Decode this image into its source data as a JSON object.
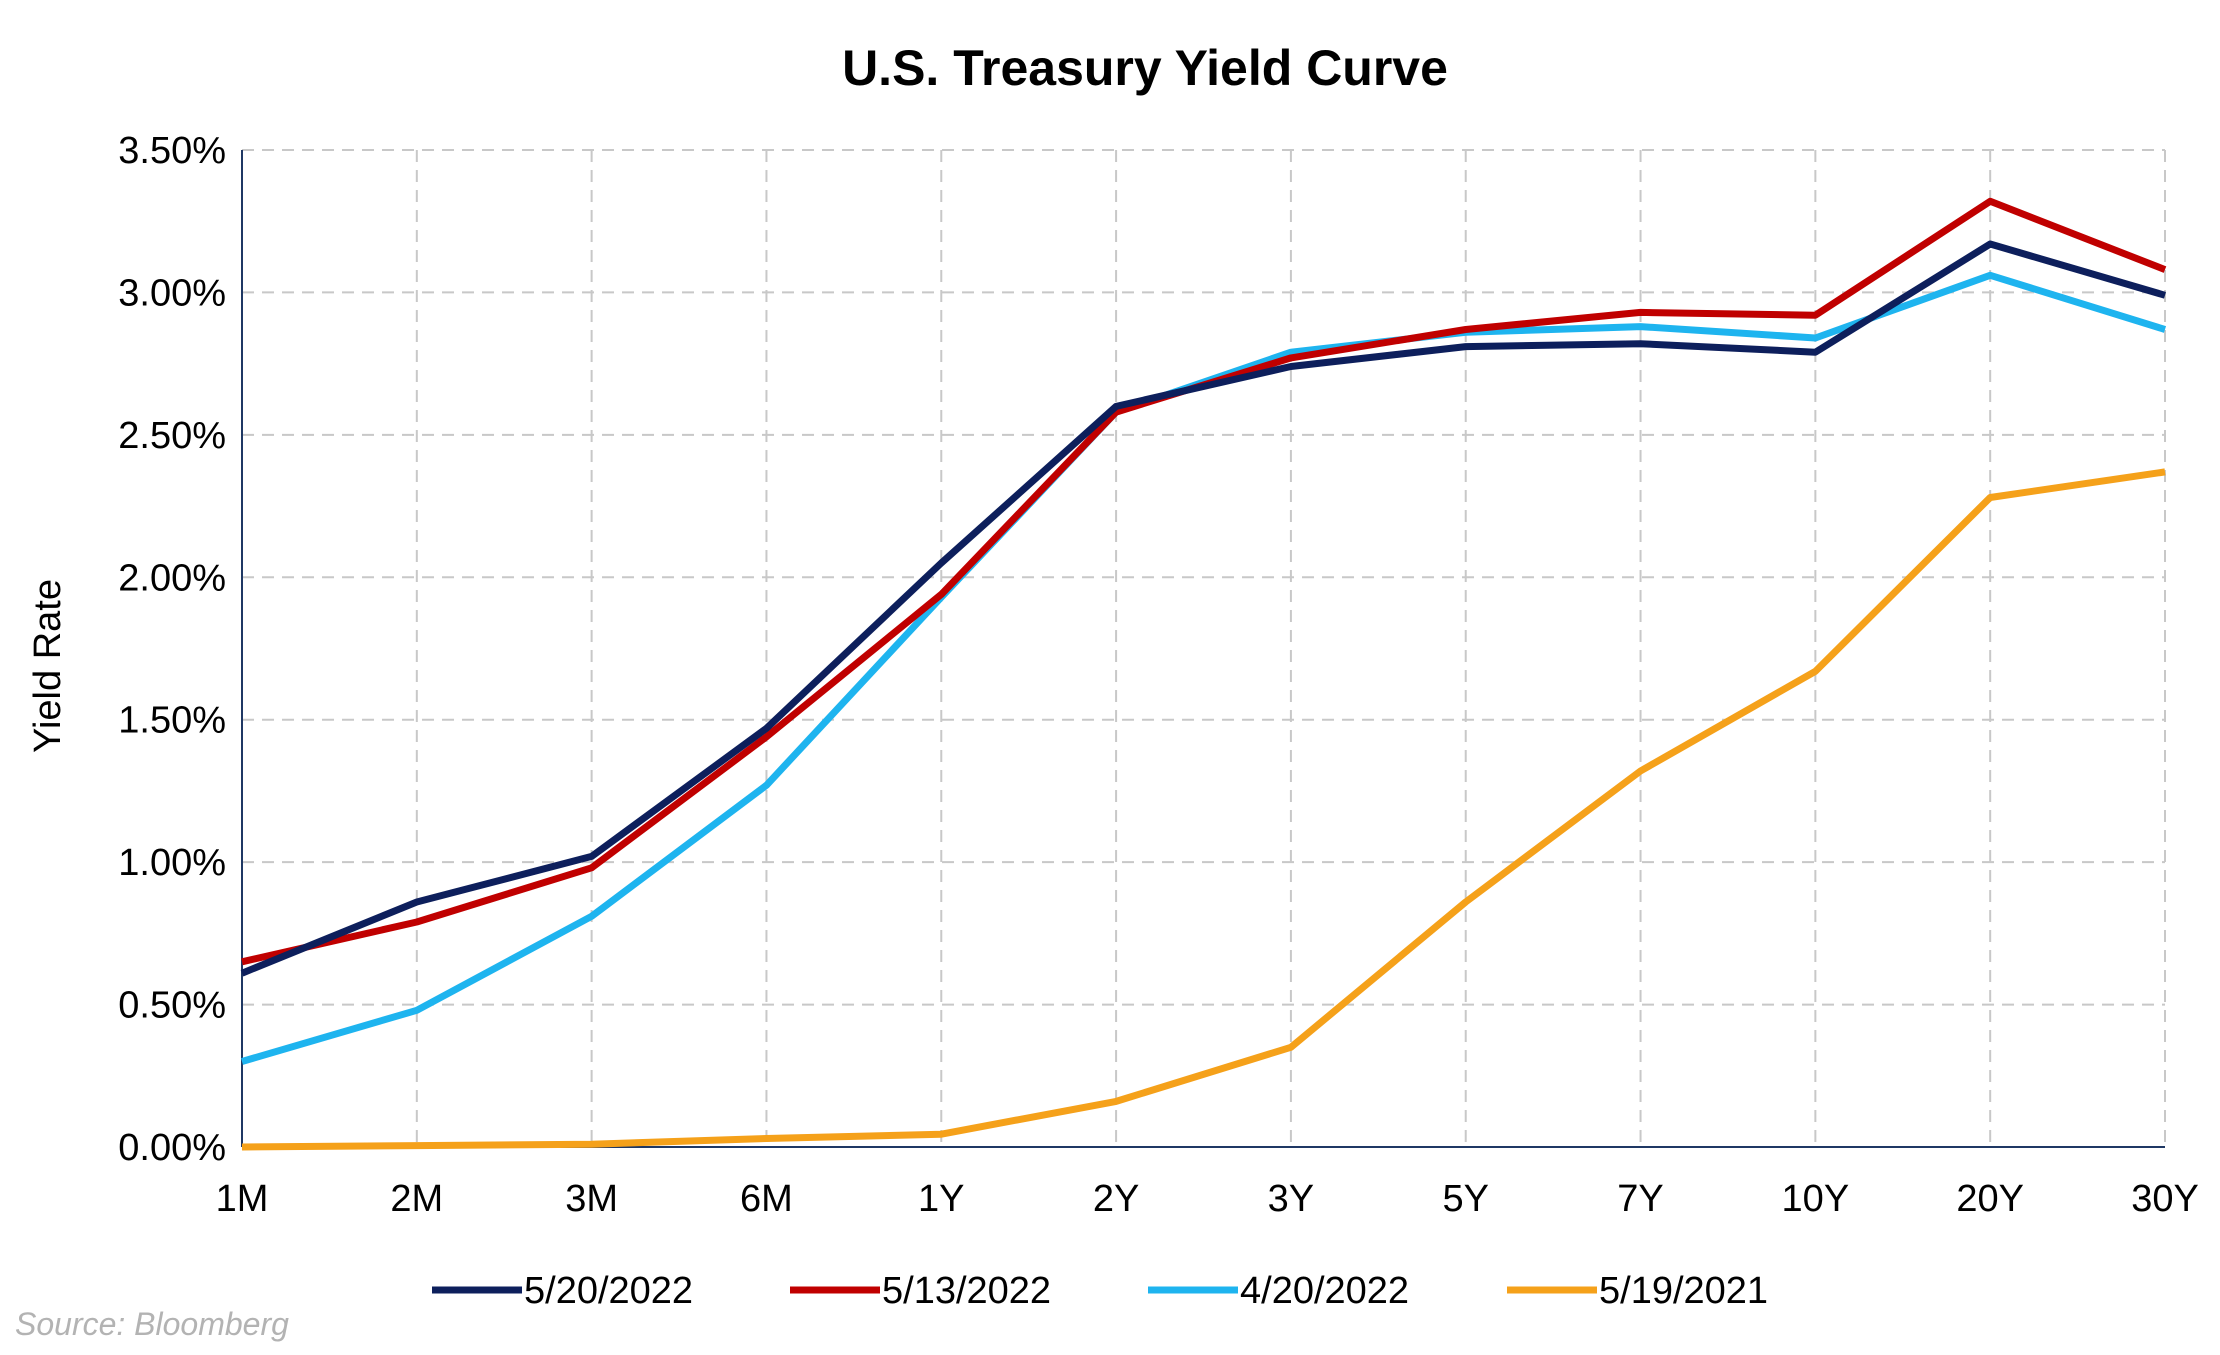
{
  "chart_data": {
    "type": "line",
    "title": "U.S. Treasury Yield Curve",
    "xlabel": "",
    "ylabel": "Yield Rate",
    "categories": [
      "1M",
      "2M",
      "3M",
      "6M",
      "1Y",
      "2Y",
      "3Y",
      "5Y",
      "7Y",
      "10Y",
      "20Y",
      "30Y"
    ],
    "ylim": [
      0,
      3.5
    ],
    "yticks": [
      "0.00%",
      "0.50%",
      "1.00%",
      "1.50%",
      "2.00%",
      "2.50%",
      "3.00%",
      "3.50%"
    ],
    "grid": true,
    "legend_position": "bottom",
    "series": [
      {
        "name": "5/20/2022",
        "color": "#0d1f5c",
        "values": [
          0.61,
          0.86,
          1.02,
          1.47,
          2.05,
          2.6,
          2.74,
          2.81,
          2.82,
          2.79,
          3.17,
          2.99
        ]
      },
      {
        "name": "5/13/2022",
        "color": "#c00000",
        "values": [
          0.65,
          0.79,
          0.98,
          1.44,
          1.94,
          2.58,
          2.77,
          2.87,
          2.93,
          2.92,
          3.32,
          3.08
        ]
      },
      {
        "name": "4/20/2022",
        "color": "#1eb4ef",
        "values": [
          0.3,
          0.48,
          0.81,
          1.27,
          1.93,
          2.58,
          2.79,
          2.86,
          2.88,
          2.84,
          3.06,
          2.87
        ]
      },
      {
        "name": "5/19/2021",
        "color": "#f5a11a",
        "values": [
          0.0,
          0.005,
          0.01,
          0.03,
          0.045,
          0.16,
          0.35,
          0.86,
          1.32,
          1.67,
          2.28,
          2.37
        ]
      }
    ]
  },
  "source": "Source: Bloomberg"
}
